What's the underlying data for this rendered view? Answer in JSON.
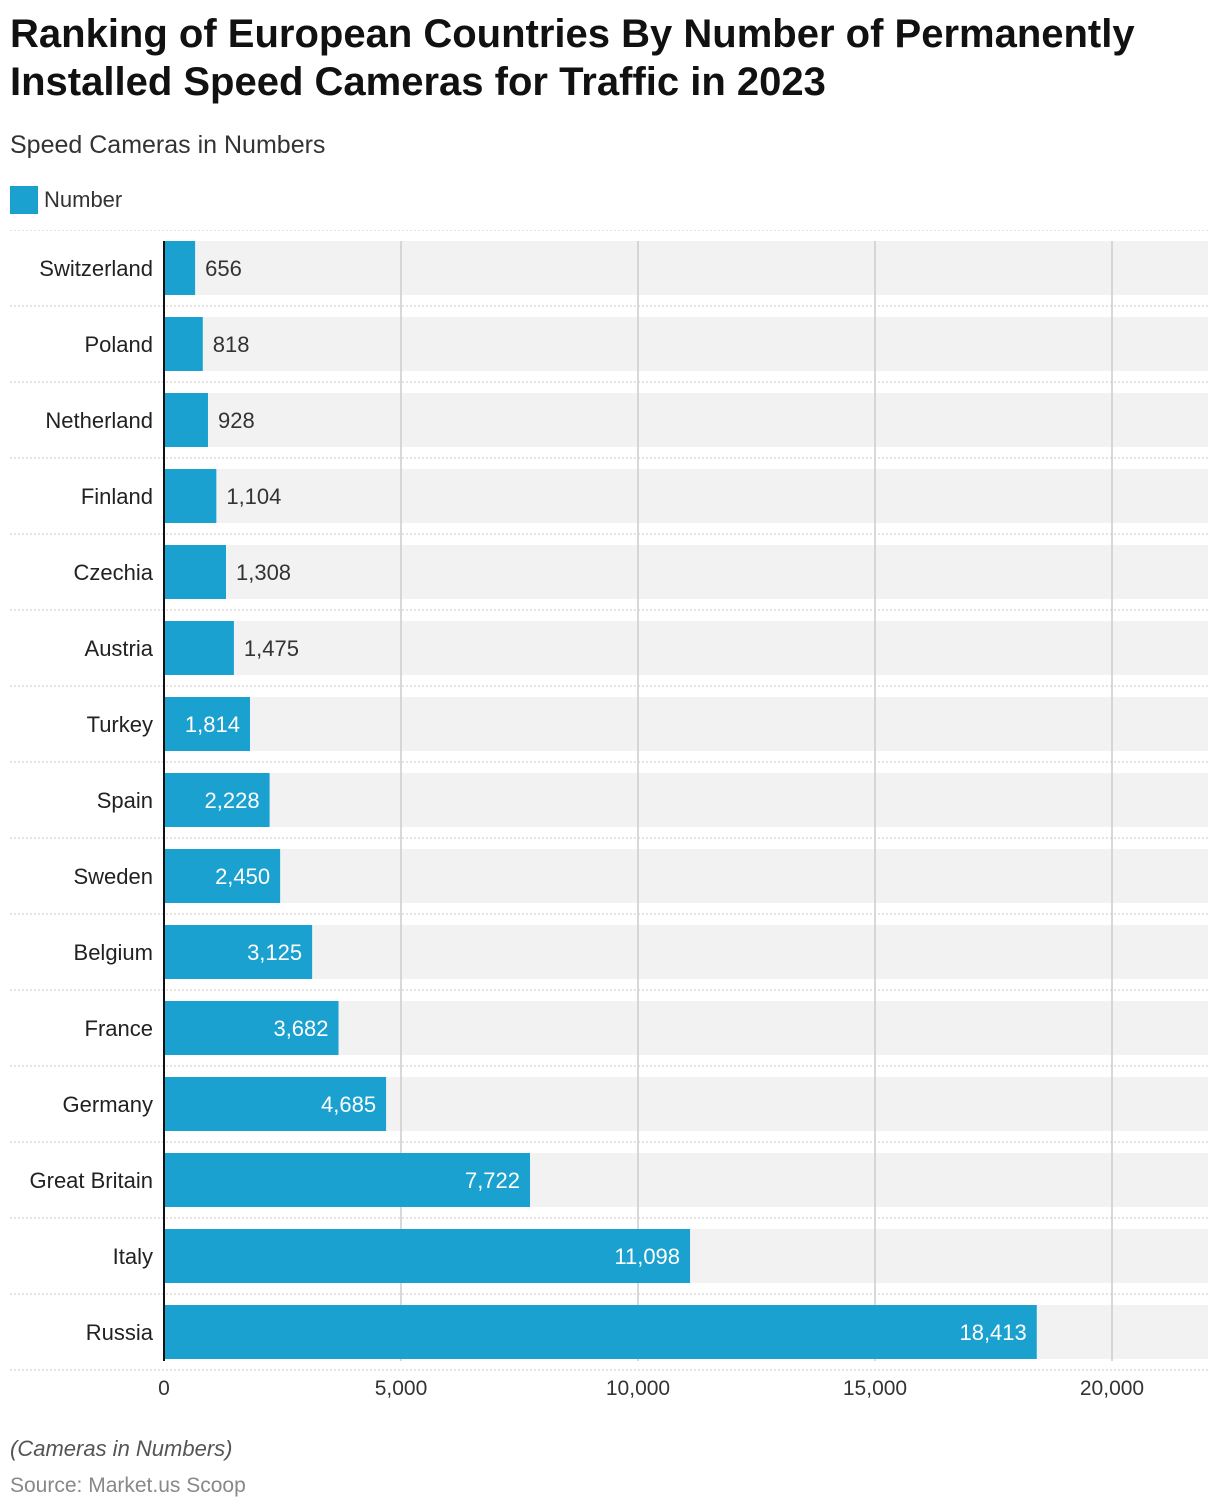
{
  "title": "Ranking of European Countries By Number of Permanently Installed Speed Cameras for Traffic in 2023",
  "subtitle": "Speed Cameras in Numbers",
  "legend": {
    "label": "Number",
    "color": "#1ba1cf"
  },
  "footnote": "(Cameras in Numbers)",
  "source": "Source: Market.us Scoop",
  "colors": {
    "bar": "#1ba1cf",
    "band": "#f2f2f2",
    "grid": "#cccccc",
    "axis": "#111111"
  },
  "chart_data": {
    "type": "bar",
    "orientation": "horizontal",
    "categories": [
      "Switzerland",
      "Poland",
      "Netherland",
      "Finland",
      "Czechia",
      "Austria",
      "Turkey",
      "Spain",
      "Sweden",
      "Belgium",
      "France",
      "Germany",
      "Great Britain",
      "Italy",
      "Russia"
    ],
    "series": [
      {
        "name": "Number",
        "values": [
          656,
          818,
          928,
          1104,
          1308,
          1475,
          1814,
          2228,
          2450,
          3125,
          3682,
          4685,
          7722,
          11098,
          18413
        ]
      }
    ],
    "value_labels": [
      "656",
      "818",
      "928",
      "1,104",
      "1,308",
      "1,475",
      "1,814",
      "2,228",
      "2,450",
      "3,125",
      "3,682",
      "4,685",
      "7,722",
      "11,098",
      "18,413"
    ],
    "xlim": [
      0,
      22000
    ],
    "xticks": [
      0,
      5000,
      10000,
      15000,
      20000
    ],
    "xtick_labels": [
      "0",
      "5,000",
      "10,000",
      "15,000",
      "20,000"
    ],
    "grid": true,
    "legend_position": "top-left"
  }
}
